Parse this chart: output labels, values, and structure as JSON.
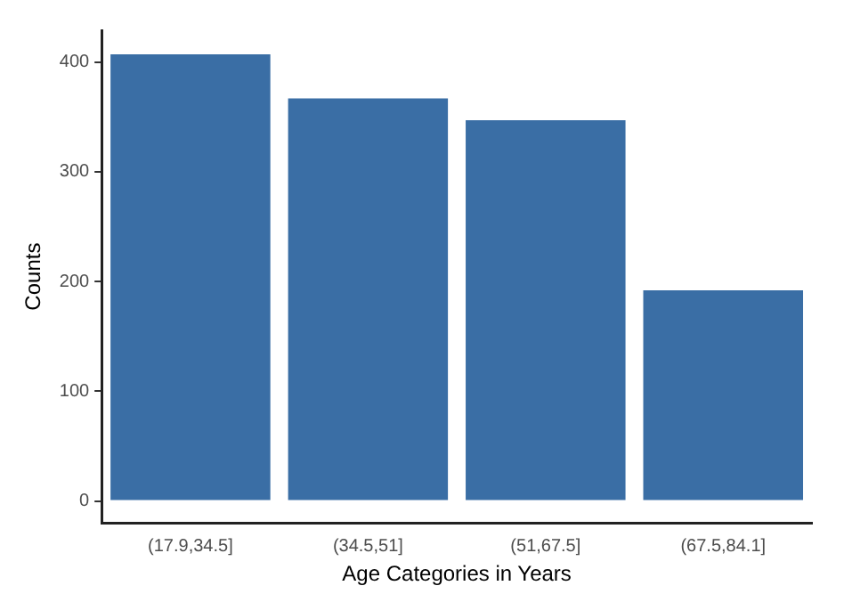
{
  "chart_data": {
    "type": "bar",
    "xlabel": "Age Categories in Years",
    "ylabel": "Counts",
    "categories": [
      "(17.9,34.5]",
      "(34.5,51]",
      "(51,67.5]",
      "(67.5,84.1]"
    ],
    "values": [
      407,
      367,
      347,
      192
    ],
    "color": "#3a6ea5",
    "ylim": [
      -20,
      429
    ],
    "yticks": [
      0,
      100,
      200,
      300,
      400
    ],
    "grid": false,
    "legend": false
  }
}
